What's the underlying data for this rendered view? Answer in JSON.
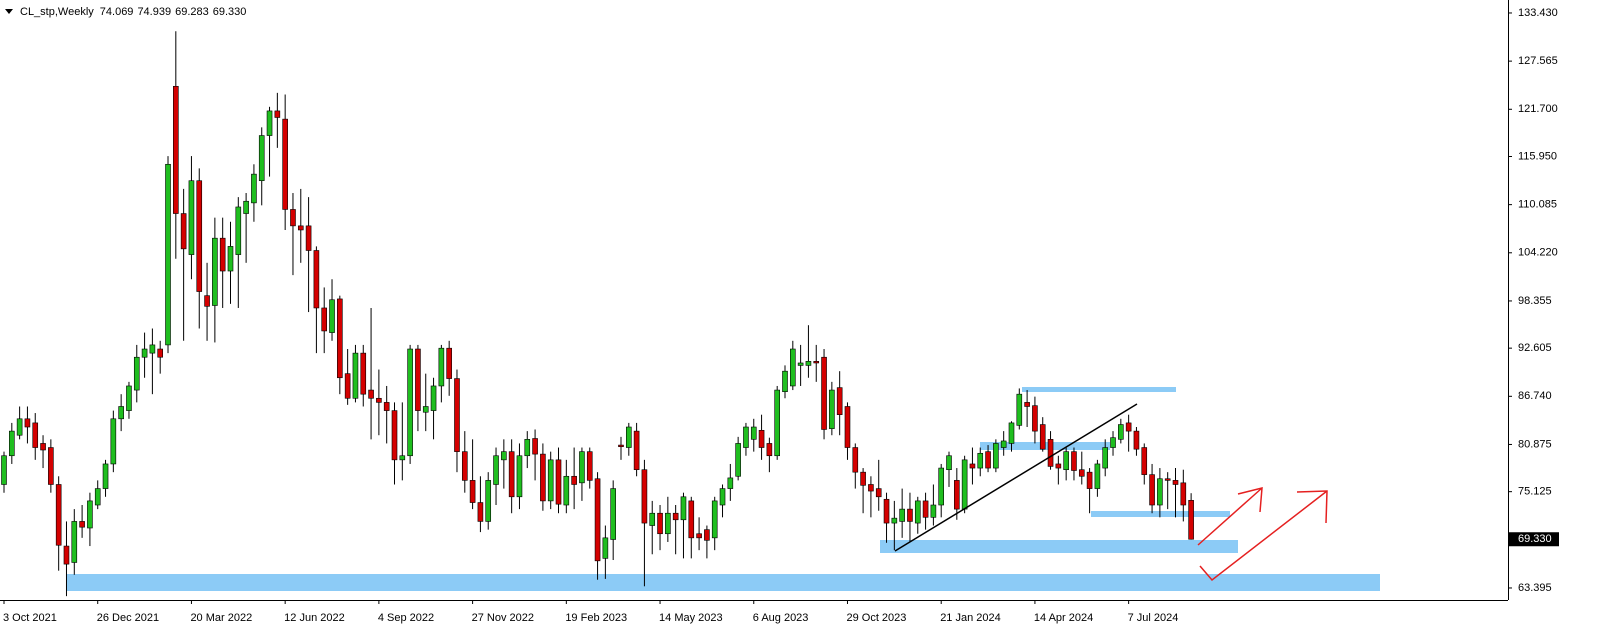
{
  "chart_data": {
    "type": "candlestick",
    "title": "CL_stp,Weekly",
    "header_values": [
      74.069,
      74.939,
      69.283,
      {
        "value": 69.33,
        "label": "69.330"
      }
    ],
    "last_price": {
      "value": 69.33,
      "label": "69.330"
    },
    "up_color": "#1fbe1f",
    "down_color": "#d40000",
    "grid": false,
    "ylim": [
      61.93,
      135.01
    ],
    "yticks": [
      {
        "value": 133.43,
        "label": "133.430"
      },
      127.565,
      {
        "value": 121.7,
        "label": "121.700"
      },
      {
        "value": 115.95,
        "label": "115.950"
      },
      110.085,
      {
        "value": 104.22,
        "label": "104.220"
      },
      98.355,
      92.605,
      {
        "value": 86.74,
        "label": "86.740"
      },
      80.875,
      75.125,
      63.395
    ],
    "categories": [
      "3 Oct 2021",
      null,
      null,
      null,
      null,
      null,
      null,
      null,
      null,
      null,
      null,
      null,
      "26 Dec 2021",
      null,
      null,
      null,
      null,
      null,
      null,
      null,
      null,
      null,
      null,
      null,
      "20 Mar 2022",
      null,
      null,
      null,
      null,
      null,
      null,
      null,
      null,
      null,
      null,
      null,
      "12 Jun 2022",
      null,
      null,
      null,
      null,
      null,
      null,
      null,
      null,
      null,
      null,
      null,
      "4 Sep 2022",
      null,
      null,
      null,
      null,
      null,
      null,
      null,
      null,
      null,
      null,
      null,
      "27 Nov 2022",
      null,
      null,
      null,
      null,
      null,
      null,
      null,
      null,
      null,
      null,
      null,
      "19 Feb 2023",
      null,
      null,
      null,
      null,
      null,
      null,
      null,
      null,
      null,
      null,
      null,
      "14 May 2023",
      null,
      null,
      null,
      null,
      null,
      null,
      null,
      null,
      null,
      null,
      null,
      "6 Aug 2023",
      null,
      null,
      null,
      null,
      null,
      null,
      null,
      null,
      null,
      null,
      null,
      "29 Oct 2023",
      null,
      null,
      null,
      null,
      null,
      null,
      null,
      null,
      null,
      null,
      null,
      "21 Jan 2024",
      null,
      null,
      null,
      null,
      null,
      null,
      null,
      null,
      null,
      null,
      null,
      "14 Apr 2024",
      null,
      null,
      null,
      null,
      null,
      null,
      null,
      null,
      null,
      null,
      null,
      "7 Jul 2024",
      null,
      null,
      null,
      null,
      null,
      null,
      null,
      null
    ],
    "open": [
      76,
      79.5,
      82,
      84,
      83.5,
      81,
      80.5,
      76,
      68.5,
      66.5,
      71.5,
      70.7,
      73.5,
      75.5,
      78.5,
      84,
      85,
      87.5,
      91.5,
      92,
      92.5,
      93,
      124.5,
      109,
      104,
      113,
      99,
      97.8,
      106,
      102,
      104,
      109,
      110.3,
      113,
      118.5,
      121.5,
      120.5,
      109.5,
      107.5,
      107.5,
      104.5,
      97.5,
      94.5,
      98.6,
      89.5,
      86.5,
      92,
      87.5,
      86.5,
      86,
      85,
      79,
      79.5,
      92.5,
      84.8,
      85,
      88,
      92.6,
      88.9,
      80,
      76.5,
      73.8,
      71.5,
      76,
      79,
      80,
      74.5,
      79.5,
      81.6,
      79.7,
      74,
      79,
      73.5,
      77,
      76.2,
      80,
      76.7,
      67,
      69.3,
      80.8,
      80.5,
      82.5,
      77.8,
      71,
      72.5,
      70,
      72.5,
      71.7,
      74,
      70,
      70.5,
      69.5,
      73.5,
      75.5,
      77,
      80.5,
      81.5,
      82.6,
      81,
      79.5,
      87.3,
      88,
      90.5,
      90.5,
      91,
      91.5,
      82.8,
      87.8,
      85.5,
      80.5,
      77.5,
      76,
      75.5,
      74.2,
      71.3,
      71.5,
      73,
      71.3,
      74,
      72,
      73.5,
      77.8,
      76.5,
      73,
      78.5,
      78,
      80,
      78,
      80.5,
      81,
      83.2,
      86,
      85.6,
      83.3,
      81.5,
      78.5,
      77.8,
      80,
      77.8,
      77.5,
      75.5,
      78,
      80.5,
      81.5,
      83.5,
      82.5,
      80.5,
      77.2,
      73.5,
      76.7,
      76.5,
      76.2,
      74.069
    ],
    "high": [
      80,
      83.5,
      85.5,
      85.5,
      84.7,
      82,
      81.5,
      77,
      71.5,
      73,
      73.5,
      75,
      76.5,
      79,
      85,
      87,
      88.5,
      93,
      94.5,
      95,
      93.5,
      116,
      131.2,
      112,
      116,
      114.5,
      103,
      108.5,
      108.5,
      108,
      111,
      111.5,
      115,
      119.5,
      122,
      123.7,
      123.5,
      111.5,
      112,
      111,
      105,
      100,
      101,
      99,
      92.5,
      93,
      93,
      97.5,
      90,
      88,
      86,
      86,
      93,
      93,
      89.5,
      89,
      93,
      93.5,
      90,
      82.5,
      81.5,
      77,
      77.5,
      80.5,
      81.5,
      81.5,
      81,
      82.5,
      82.7,
      81,
      80,
      80.5,
      79,
      80.5,
      80.5,
      80.5,
      77.5,
      71,
      76.5,
      81.8,
      83.5,
      83.5,
      79,
      74,
      73.5,
      74.5,
      73.5,
      75,
      74.5,
      72,
      71,
      74.5,
      76,
      78.5,
      81.8,
      83.5,
      84,
      84.5,
      81.7,
      88,
      90.5,
      93.5,
      93,
      95.4,
      93,
      92.5,
      88.5,
      89.8,
      86,
      81,
      78,
      77,
      79,
      75,
      74,
      75.5,
      75,
      74.5,
      75,
      76,
      78.5,
      80,
      78,
      79.5,
      80.5,
      80.5,
      80.8,
      81.5,
      82.5,
      83.7,
      87.7,
      87.5,
      86.7,
      84.2,
      82.5,
      79.5,
      80.5,
      80.5,
      80,
      78,
      79,
      81.5,
      82.5,
      84,
      84.5,
      83,
      81,
      78.5,
      78,
      77.5,
      78,
      77.8,
      74.939
    ],
    "low": [
      75,
      78.5,
      81.5,
      81,
      79,
      78,
      75,
      65.5,
      62.4,
      65,
      69.5,
      68.5,
      73,
      74.5,
      77.5,
      82.5,
      84,
      86,
      89,
      87,
      89.5,
      92,
      103.5,
      93.5,
      101,
      95,
      93.5,
      93.3,
      97.5,
      98,
      97.5,
      103,
      108,
      110,
      113.5,
      117,
      107,
      101.5,
      103,
      97,
      92,
      92,
      93.5,
      87,
      85.7,
      86,
      85.5,
      81.5,
      82,
      81,
      76,
      76.5,
      78.5,
      82.5,
      82.5,
      81.5,
      86,
      86.8,
      77.5,
      75,
      73,
      70.2,
      70.5,
      73.5,
      75.5,
      72.5,
      73,
      78,
      76.5,
      72.8,
      73,
      72.5,
      72.5,
      73,
      74,
      75.5,
      64.4,
      64.5,
      66.8,
      79,
      79.5,
      77,
      63.6,
      67.5,
      68,
      69,
      67.5,
      67,
      67,
      68,
      67,
      68,
      72,
      74,
      76.5,
      79.5,
      80,
      79,
      77.5,
      79,
      86.5,
      87.5,
      88,
      89,
      88.5,
      81.5,
      82,
      82,
      79,
      75.5,
      72.5,
      72,
      72.8,
      68.9,
      68,
      69.5,
      69,
      70,
      70.5,
      71,
      72,
      75.7,
      71.7,
      72.5,
      76,
      77,
      77.5,
      77.5,
      79.5,
      80,
      82.7,
      83,
      81,
      80,
      77.8,
      76,
      76.5,
      76.5,
      76,
      72.5,
      74.5,
      77,
      79.5,
      81,
      80,
      79.5,
      76,
      72.5,
      72,
      73,
      72,
      71.5,
      69.283
    ],
    "close": [
      79.5,
      82.5,
      84,
      83,
      80.5,
      80.2,
      76,
      68.6,
      66.3,
      71.5,
      70.8,
      74,
      75.5,
      78.5,
      84,
      85.5,
      88,
      91.5,
      92.5,
      93,
      91.5,
      115,
      109,
      104.7,
      113,
      99.5,
      97.7,
      106,
      102,
      105,
      109.8,
      110.5,
      113.8,
      118.5,
      121.5,
      120.7,
      109.5,
      107.5,
      107,
      104.5,
      97.5,
      94.7,
      98.5,
      89,
      86.5,
      92,
      87,
      86.5,
      86,
      85,
      79,
      79.5,
      92.5,
      85,
      85.5,
      88,
      92.6,
      88.9,
      80,
      76.5,
      73.8,
      71.5,
      76.5,
      79.5,
      80,
      74.5,
      79.5,
      81.5,
      79.7,
      74,
      79,
      73.6,
      77,
      76,
      80,
      76.5,
      66.7,
      69.5,
      75.5,
      80.6,
      83,
      77.8,
      71.3,
      72.5,
      70,
      72.5,
      71.7,
      74.5,
      69.5,
      69.5,
      69.2,
      74,
      75.5,
      76.8,
      81,
      83,
      83,
      80.5,
      79.5,
      87.5,
      89.8,
      92.5,
      90.8,
      91,
      90.8,
      82.7,
      87.5,
      84.5,
      80.5,
      77.5,
      75.9,
      75.2,
      74.5,
      71.3,
      71.9,
      73,
      71.5,
      74,
      72,
      73.5,
      78,
      79.5,
      73,
      79,
      78,
      79.8,
      78,
      81,
      81.3,
      83.5,
      87,
      85.5,
      82.5,
      80.3,
      78.2,
      78,
      80,
      77.7,
      77,
      75.5,
      78.5,
      80.5,
      81.7,
      83.3,
      82.5,
      80.3,
      77.2,
      73.5,
      76.7,
      76.5,
      76,
      73.5,
      69.33
    ]
  }
}
